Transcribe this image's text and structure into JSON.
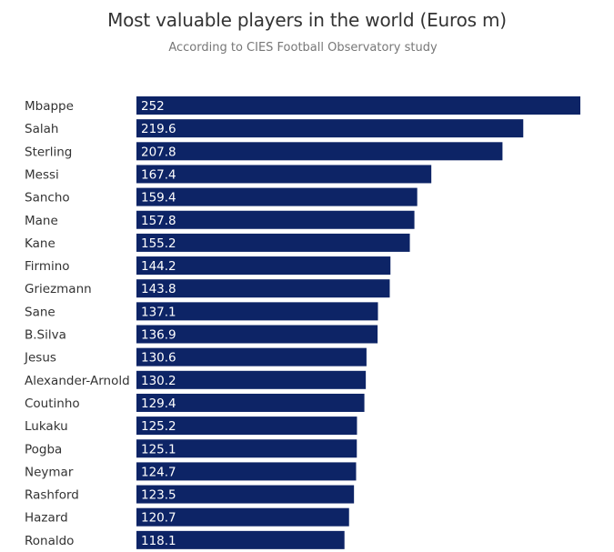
{
  "chart_data": {
    "type": "bar",
    "orientation": "horizontal",
    "title": "Most valuable players in the world (Euros m)",
    "subtitle": "According to CIES Football Observatory study",
    "categories": [
      "Mbappe",
      "Salah",
      "Sterling",
      "Messi",
      "Sancho",
      "Mane",
      "Kane",
      "Firmino",
      "Griezmann",
      "Sane",
      "B.Silva",
      "Jesus",
      "Alexander-Arnold",
      "Coutinho",
      "Lukaku",
      "Pogba",
      "Neymar",
      "Rashford",
      "Hazard",
      "Ronaldo"
    ],
    "values": [
      252,
      219.6,
      207.8,
      167.4,
      159.4,
      157.8,
      155.2,
      144.2,
      143.8,
      137.1,
      136.9,
      130.6,
      130.2,
      129.4,
      125.2,
      125.1,
      124.7,
      123.5,
      120.7,
      118.1
    ],
    "value_labels": [
      "252",
      "219.6",
      "207.8",
      "167.4",
      "159.4",
      "157.8",
      "155.2",
      "144.2",
      "143.8",
      "137.1",
      "136.9",
      "130.6",
      "130.2",
      "129.4",
      "125.2",
      "125.1",
      "124.7",
      "123.5",
      "120.7",
      "118.1"
    ],
    "xlim": [
      0,
      252
    ],
    "grid": false,
    "legend": "none",
    "bar_color": "#0d2466"
  }
}
